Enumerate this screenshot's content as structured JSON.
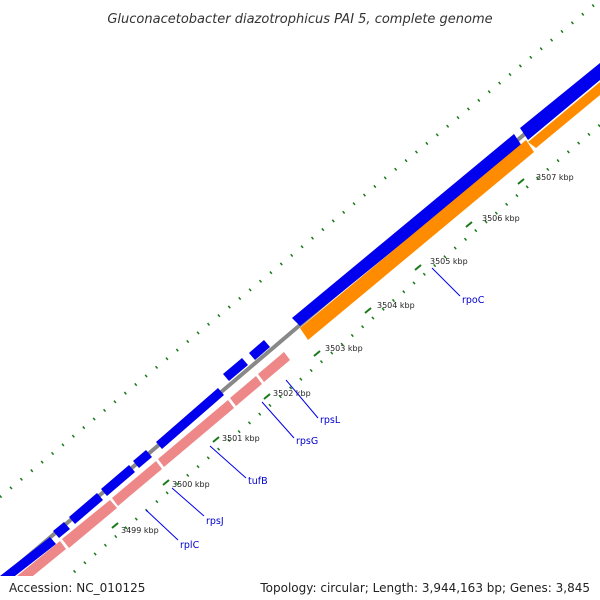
{
  "title": "Gluconacetobacter diazotrophicus PAI 5, complete genome",
  "footer": {
    "accession": "Accession: NC_010125",
    "summary": "Topology: circular; Length: 3,944,163 bp; Genes: 3,845"
  },
  "colors": {
    "backbone": "#888888",
    "forward_gene": "#0000ee",
    "reverse_gene": "#ee8888",
    "highlight_gene": "#ff8c00",
    "tick": "#1a7a1a",
    "gene_label": "#0000cc"
  },
  "ticks": [
    {
      "label": "3499 kbp"
    },
    {
      "label": "3500 kbp"
    },
    {
      "label": "3501 kbp"
    },
    {
      "label": "3502 kbp"
    },
    {
      "label": "3503 kbp"
    },
    {
      "label": "3504 kbp"
    },
    {
      "label": "3505 kbp"
    },
    {
      "label": "3506 kbp"
    },
    {
      "label": "3507 kbp"
    }
  ],
  "genes": [
    {
      "label": "rplC"
    },
    {
      "label": "rpsJ"
    },
    {
      "label": "tufB"
    },
    {
      "label": "rpsG"
    },
    {
      "label": "rpsL"
    },
    {
      "label": "rpoC"
    }
  ]
}
